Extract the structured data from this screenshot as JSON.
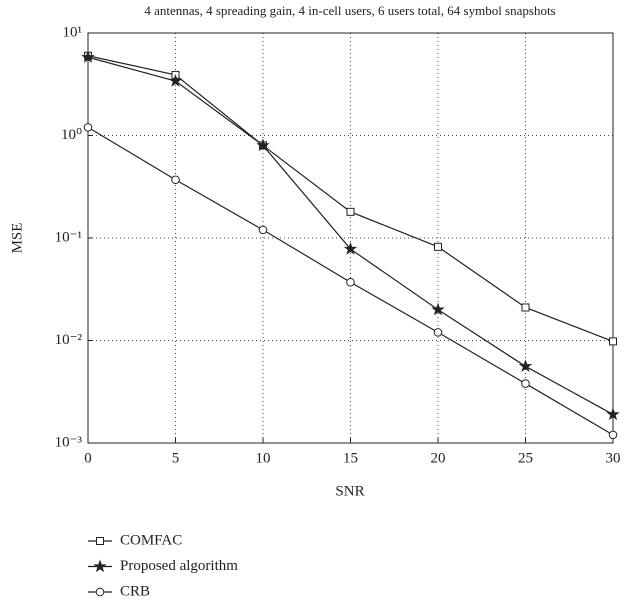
{
  "chart_data": {
    "type": "line",
    "title": "4 antennas, 4 spreading gain, 4 in-cell users, 6 users total, 64 symbol snapshots",
    "x_label": "SNR",
    "y_label": "MSE",
    "x": [
      0,
      5,
      10,
      15,
      20,
      25,
      30
    ],
    "series": [
      {
        "name": "COMFAC",
        "color": "#222222",
        "marker": "square",
        "values": [
          6.0,
          3.9,
          0.8,
          0.18,
          0.082,
          0.021,
          0.0098
        ]
      },
      {
        "name": "Proposed algorithm",
        "color": "#222222",
        "marker": "star",
        "values": [
          5.8,
          3.4,
          0.8,
          0.078,
          0.02,
          0.0056,
          0.0019
        ]
      },
      {
        "name": "CRB",
        "color": "#222222",
        "marker": "circle",
        "values": [
          1.2,
          0.37,
          0.12,
          0.037,
          0.012,
          0.0038,
          0.0012
        ]
      }
    ],
    "xlim": [
      0,
      30
    ],
    "xticks": [
      0,
      5,
      10,
      15,
      20,
      25,
      30
    ],
    "ylim": [
      0.001,
      10
    ],
    "log_y": true,
    "yticks": [
      {
        "value": 0.001,
        "label": "10⁻³"
      },
      {
        "value": 0.01,
        "label": "10⁻²"
      },
      {
        "value": 0.1,
        "label": "10⁻¹"
      },
      {
        "value": 1,
        "label": "10⁰"
      },
      {
        "value": 10,
        "label": "10¹"
      }
    ],
    "grid": true,
    "legend": "below"
  }
}
